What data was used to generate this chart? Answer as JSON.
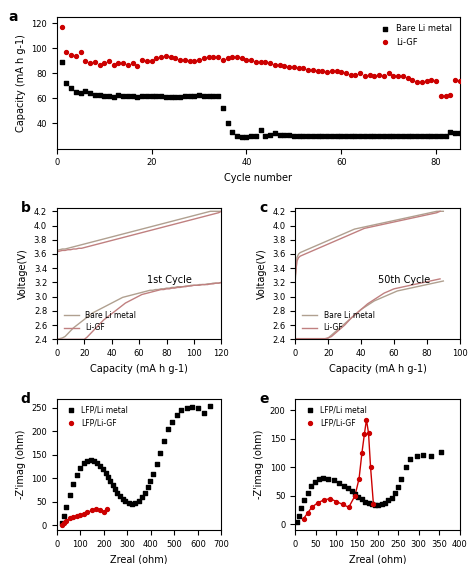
{
  "panel_a": {
    "title": "a",
    "xlabel": "Cycle number",
    "ylabel": "Capacity (mA h g-1)",
    "xlim": [
      0,
      85
    ],
    "ylim": [
      20,
      125
    ],
    "yticks": [
      40,
      60,
      80,
      100,
      120
    ],
    "xticks": [
      0,
      20,
      40,
      60,
      80
    ],
    "bare_li_x": [
      1,
      2,
      3,
      4,
      5,
      6,
      7,
      8,
      9,
      10,
      11,
      12,
      13,
      14,
      15,
      16,
      17,
      18,
      19,
      20,
      21,
      22,
      23,
      24,
      25,
      26,
      27,
      28,
      29,
      30,
      31,
      32,
      33,
      34,
      35,
      36,
      37,
      38,
      39,
      40,
      41,
      42,
      43,
      44,
      45,
      46,
      47,
      48,
      49,
      50,
      51,
      52,
      53,
      54,
      55,
      56,
      57,
      58,
      59,
      60,
      61,
      62,
      63,
      64,
      65,
      66,
      67,
      68,
      69,
      70,
      71,
      72,
      73,
      74,
      75,
      76,
      77,
      78,
      79,
      80,
      81,
      82,
      83,
      84,
      85
    ],
    "bare_li_y": [
      89,
      72,
      68,
      65,
      64,
      66,
      64,
      63,
      63,
      62,
      62,
      61,
      63,
      62,
      62,
      62,
      61,
      62,
      62,
      62,
      62,
      62,
      61,
      61,
      61,
      61,
      62,
      62,
      62,
      63,
      62,
      62,
      62,
      62,
      52,
      40,
      33,
      30,
      29,
      29,
      30,
      30,
      35,
      30,
      31,
      32,
      31,
      31,
      31,
      30,
      30,
      30,
      30,
      30,
      30,
      30,
      30,
      30,
      30,
      30,
      30,
      30,
      30,
      30,
      30,
      30,
      30,
      30,
      30,
      30,
      30,
      30,
      30,
      30,
      30,
      30,
      30,
      30,
      30,
      30,
      30,
      30,
      33,
      32,
      32
    ],
    "li_gf_x": [
      1,
      2,
      3,
      4,
      5,
      6,
      7,
      8,
      9,
      10,
      11,
      12,
      13,
      14,
      15,
      16,
      17,
      18,
      19,
      20,
      21,
      22,
      23,
      24,
      25,
      26,
      27,
      28,
      29,
      30,
      31,
      32,
      33,
      34,
      35,
      36,
      37,
      38,
      39,
      40,
      41,
      42,
      43,
      44,
      45,
      46,
      47,
      48,
      49,
      50,
      51,
      52,
      53,
      54,
      55,
      56,
      57,
      58,
      59,
      60,
      61,
      62,
      63,
      64,
      65,
      66,
      67,
      68,
      69,
      70,
      71,
      72,
      73,
      74,
      75,
      76,
      77,
      78,
      79,
      80,
      81,
      82,
      83,
      84,
      85
    ],
    "li_gf_y": [
      117,
      97,
      95,
      94,
      97,
      90,
      88,
      89,
      87,
      88,
      90,
      87,
      88,
      88,
      87,
      88,
      86,
      91,
      90,
      90,
      92,
      93,
      94,
      93,
      92,
      91,
      91,
      90,
      90,
      91,
      92,
      93,
      93,
      93,
      91,
      92,
      93,
      93,
      92,
      91,
      91,
      89,
      89,
      89,
      88,
      87,
      87,
      86,
      85,
      85,
      84,
      84,
      83,
      83,
      82,
      82,
      81,
      82,
      82,
      81,
      80,
      79,
      79,
      80,
      78,
      79,
      78,
      79,
      78,
      80,
      78,
      78,
      78,
      76,
      75,
      73,
      73,
      74,
      75,
      74,
      62,
      62,
      63,
      75,
      74
    ],
    "bare_li_color": "#000000",
    "li_gf_color": "#cc0000",
    "bare_li_label": "Bare Li metal",
    "li_gf_label": "Li-GF"
  },
  "panel_b": {
    "title": "b",
    "xlabel": "Capacity (mA h g-1)",
    "ylabel": "Voltage(V)",
    "xlim": [
      0,
      120
    ],
    "ylim": [
      2.4,
      4.25
    ],
    "xticks": [
      0,
      20,
      40,
      60,
      80,
      100,
      120
    ],
    "yticks": [
      2.4,
      2.6,
      2.8,
      3.0,
      3.2,
      3.4,
      3.6,
      3.8,
      4.0,
      4.2
    ],
    "annotation": "1st Cycle",
    "bare_li_charge_x": [
      0,
      2,
      4,
      6,
      8,
      10,
      12,
      14,
      16,
      18,
      20,
      22,
      24,
      26,
      28,
      30,
      32,
      34,
      36,
      38,
      40,
      42,
      44,
      46,
      48,
      50,
      52,
      54,
      56,
      58,
      60,
      62,
      64,
      66,
      68,
      70,
      72,
      74,
      76,
      78,
      80,
      82,
      84,
      86,
      88,
      90,
      92,
      94,
      96,
      98,
      100,
      102,
      104,
      106,
      108,
      110,
      112,
      114,
      116,
      118,
      120
    ],
    "bare_li_charge_y": [
      3.65,
      3.66,
      3.67,
      3.67,
      3.68,
      3.69,
      3.7,
      3.71,
      3.72,
      3.73,
      3.74,
      3.75,
      3.76,
      3.77,
      3.78,
      3.79,
      3.8,
      3.81,
      3.82,
      3.83,
      3.84,
      3.85,
      3.86,
      3.87,
      3.88,
      3.89,
      3.9,
      3.91,
      3.92,
      3.93,
      3.94,
      3.95,
      3.96,
      3.97,
      3.98,
      3.99,
      4.0,
      4.01,
      4.02,
      4.03,
      4.04,
      4.05,
      4.06,
      4.07,
      4.08,
      4.09,
      4.1,
      4.11,
      4.12,
      4.13,
      4.14,
      4.15,
      4.16,
      4.17,
      4.18,
      4.19,
      4.2,
      4.2,
      4.2,
      4.2,
      4.2
    ],
    "bare_li_discharge_x": [
      120,
      118,
      116,
      114,
      112,
      110,
      108,
      106,
      104,
      102,
      100,
      98,
      96,
      94,
      92,
      90,
      88,
      86,
      84,
      82,
      80,
      78,
      76,
      74,
      72,
      70,
      68,
      66,
      64,
      62,
      60,
      58,
      56,
      54,
      52,
      50,
      48,
      46,
      44,
      42,
      40,
      38,
      36,
      34,
      32,
      30,
      28,
      26,
      24,
      22,
      20,
      18,
      16,
      14,
      12,
      10,
      8,
      6,
      4,
      2,
      0
    ],
    "bare_li_discharge_y": [
      3.2,
      3.19,
      3.19,
      3.19,
      3.18,
      3.18,
      3.17,
      3.17,
      3.17,
      3.16,
      3.16,
      3.16,
      3.15,
      3.15,
      3.14,
      3.14,
      3.14,
      3.13,
      3.13,
      3.12,
      3.12,
      3.11,
      3.11,
      3.1,
      3.1,
      3.09,
      3.09,
      3.08,
      3.07,
      3.06,
      3.05,
      3.04,
      3.03,
      3.02,
      3.01,
      3.0,
      2.99,
      2.97,
      2.95,
      2.93,
      2.91,
      2.89,
      2.87,
      2.85,
      2.83,
      2.81,
      2.79,
      2.77,
      2.74,
      2.71,
      2.68,
      2.65,
      2.62,
      2.59,
      2.56,
      2.52,
      2.48,
      2.44,
      2.42,
      2.41,
      2.4
    ],
    "li_gf_charge_x": [
      0,
      2,
      4,
      6,
      8,
      10,
      12,
      14,
      16,
      18,
      20,
      22,
      24,
      26,
      28,
      30,
      32,
      34,
      36,
      38,
      40,
      42,
      44,
      46,
      48,
      50,
      52,
      54,
      56,
      58,
      60,
      62,
      64,
      66,
      68,
      70,
      72,
      74,
      76,
      78,
      80,
      82,
      84,
      86,
      88,
      90,
      92,
      94,
      96,
      98,
      100,
      102,
      104,
      106,
      108,
      110,
      112,
      114,
      116,
      118,
      120
    ],
    "li_gf_charge_y": [
      3.63,
      3.64,
      3.65,
      3.65,
      3.66,
      3.66,
      3.67,
      3.67,
      3.68,
      3.68,
      3.69,
      3.7,
      3.71,
      3.72,
      3.73,
      3.74,
      3.75,
      3.76,
      3.77,
      3.78,
      3.79,
      3.8,
      3.81,
      3.82,
      3.83,
      3.84,
      3.85,
      3.86,
      3.87,
      3.88,
      3.89,
      3.9,
      3.91,
      3.92,
      3.93,
      3.94,
      3.95,
      3.96,
      3.97,
      3.98,
      3.99,
      4.0,
      4.01,
      4.02,
      4.03,
      4.04,
      4.05,
      4.06,
      4.07,
      4.08,
      4.09,
      4.1,
      4.11,
      4.12,
      4.13,
      4.14,
      4.15,
      4.16,
      4.17,
      4.18,
      4.2
    ],
    "li_gf_discharge_x": [
      120,
      118,
      116,
      114,
      112,
      110,
      108,
      106,
      104,
      102,
      100,
      98,
      96,
      94,
      92,
      90,
      88,
      86,
      84,
      82,
      80,
      78,
      76,
      74,
      72,
      70,
      68,
      66,
      64,
      62,
      60,
      58,
      56,
      54,
      52,
      50,
      48,
      46,
      44,
      42,
      40,
      38,
      36,
      34,
      32,
      30,
      28,
      26,
      24,
      22,
      20,
      18,
      16,
      14,
      12,
      10,
      8,
      6,
      4,
      2,
      0
    ],
    "li_gf_discharge_y": [
      3.2,
      3.19,
      3.19,
      3.18,
      3.18,
      3.17,
      3.17,
      3.17,
      3.16,
      3.16,
      3.16,
      3.15,
      3.15,
      3.14,
      3.14,
      3.13,
      3.13,
      3.12,
      3.12,
      3.11,
      3.11,
      3.1,
      3.1,
      3.09,
      3.08,
      3.07,
      3.06,
      3.05,
      3.04,
      3.03,
      3.01,
      2.99,
      2.97,
      2.95,
      2.93,
      2.91,
      2.88,
      2.85,
      2.82,
      2.79,
      2.76,
      2.73,
      2.7,
      2.67,
      2.63,
      2.59,
      2.55,
      2.51,
      2.47,
      2.43,
      2.4,
      2.4,
      2.4,
      2.4,
      2.4,
      2.4,
      2.4,
      2.4,
      2.4,
      2.4,
      2.4
    ],
    "bare_li_color": "#b0a090",
    "li_gf_color": "#c08080",
    "bare_li_label": "Bare Li metal",
    "li_gf_label": "Li-GF"
  },
  "panel_c": {
    "title": "c",
    "xlabel": "Capacity (mA h g-1)",
    "ylabel": "Voltage(V)",
    "xlim": [
      0,
      100
    ],
    "ylim": [
      2.4,
      4.25
    ],
    "xticks": [
      0,
      20,
      40,
      60,
      80,
      100
    ],
    "yticks": [
      2.4,
      2.6,
      2.8,
      3.0,
      3.2,
      3.4,
      3.6,
      3.8,
      4.0,
      4.2
    ],
    "annotation": "50th Cycle",
    "bare_li_charge_x": [
      0,
      1,
      2,
      3,
      4,
      5,
      6,
      7,
      8,
      9,
      10,
      12,
      14,
      16,
      18,
      20,
      22,
      24,
      26,
      28,
      30,
      32,
      34,
      36,
      38,
      40,
      42,
      44,
      46,
      48,
      50,
      52,
      54,
      56,
      58,
      60,
      62,
      64,
      66,
      68,
      70,
      72,
      74,
      76,
      78,
      80,
      82,
      84,
      86,
      88,
      90
    ],
    "bare_li_charge_y": [
      3.25,
      3.55,
      3.6,
      3.62,
      3.63,
      3.64,
      3.65,
      3.66,
      3.67,
      3.68,
      3.69,
      3.71,
      3.73,
      3.75,
      3.77,
      3.79,
      3.81,
      3.83,
      3.85,
      3.87,
      3.89,
      3.91,
      3.93,
      3.95,
      3.96,
      3.97,
      3.98,
      3.99,
      4.0,
      4.01,
      4.02,
      4.03,
      4.04,
      4.05,
      4.06,
      4.07,
      4.08,
      4.09,
      4.1,
      4.11,
      4.12,
      4.13,
      4.14,
      4.15,
      4.16,
      4.17,
      4.18,
      4.19,
      4.2,
      4.2,
      4.2
    ],
    "bare_li_discharge_x": [
      90,
      88,
      86,
      84,
      82,
      80,
      78,
      76,
      74,
      72,
      70,
      68,
      66,
      64,
      62,
      60,
      58,
      56,
      54,
      52,
      50,
      48,
      46,
      44,
      42,
      40,
      38,
      36,
      34,
      32,
      30,
      28,
      26,
      24,
      22,
      20,
      18,
      16,
      14,
      12,
      10,
      8,
      6,
      4,
      2,
      0
    ],
    "bare_li_discharge_y": [
      3.22,
      3.21,
      3.2,
      3.19,
      3.18,
      3.17,
      3.16,
      3.15,
      3.14,
      3.13,
      3.12,
      3.11,
      3.1,
      3.09,
      3.08,
      3.06,
      3.04,
      3.02,
      3.0,
      2.98,
      2.96,
      2.94,
      2.91,
      2.88,
      2.85,
      2.82,
      2.78,
      2.74,
      2.7,
      2.66,
      2.62,
      2.58,
      2.54,
      2.5,
      2.46,
      2.42,
      2.4,
      2.4,
      2.4,
      2.4,
      2.4,
      2.4,
      2.4,
      2.4,
      2.4,
      2.4
    ],
    "li_gf_charge_x": [
      0,
      1,
      2,
      3,
      4,
      5,
      6,
      7,
      8,
      9,
      10,
      12,
      14,
      16,
      18,
      20,
      22,
      24,
      26,
      28,
      30,
      32,
      34,
      36,
      38,
      40,
      42,
      44,
      46,
      48,
      50,
      52,
      54,
      56,
      58,
      60,
      62,
      64,
      66,
      68,
      70,
      72,
      74,
      76,
      78,
      80,
      82,
      84,
      86,
      88
    ],
    "li_gf_charge_y": [
      3.3,
      3.5,
      3.55,
      3.57,
      3.58,
      3.59,
      3.6,
      3.61,
      3.62,
      3.63,
      3.64,
      3.66,
      3.68,
      3.7,
      3.72,
      3.74,
      3.76,
      3.78,
      3.8,
      3.82,
      3.84,
      3.86,
      3.88,
      3.9,
      3.92,
      3.94,
      3.96,
      3.97,
      3.98,
      3.99,
      4.0,
      4.01,
      4.02,
      4.03,
      4.04,
      4.05,
      4.06,
      4.07,
      4.08,
      4.09,
      4.1,
      4.11,
      4.12,
      4.13,
      4.14,
      4.15,
      4.16,
      4.17,
      4.18,
      4.2
    ],
    "li_gf_discharge_x": [
      88,
      86,
      84,
      82,
      80,
      78,
      76,
      74,
      72,
      70,
      68,
      66,
      64,
      62,
      60,
      58,
      56,
      54,
      52,
      50,
      48,
      46,
      44,
      42,
      40,
      38,
      36,
      34,
      32,
      30,
      28,
      26,
      24,
      22,
      20,
      18,
      16,
      14,
      12,
      10,
      8,
      6,
      4,
      2,
      0
    ],
    "li_gf_discharge_y": [
      3.25,
      3.24,
      3.23,
      3.22,
      3.21,
      3.2,
      3.19,
      3.18,
      3.17,
      3.16,
      3.15,
      3.14,
      3.13,
      3.12,
      3.11,
      3.09,
      3.07,
      3.05,
      3.02,
      2.99,
      2.96,
      2.93,
      2.9,
      2.86,
      2.82,
      2.78,
      2.74,
      2.7,
      2.65,
      2.6,
      2.56,
      2.52,
      2.48,
      2.44,
      2.42,
      2.41,
      2.41,
      2.41,
      2.41,
      2.41,
      2.41,
      2.41,
      2.41,
      2.41,
      2.41
    ],
    "bare_li_color": "#b0a090",
    "li_gf_color": "#c08080",
    "bare_li_label": "Bare Li metal",
    "li_gf_label": "Li-GF"
  },
  "panel_d": {
    "title": "d",
    "xlabel": "Zreal (ohm)",
    "ylabel": "-Z'imag (ohm)",
    "xlim": [
      0,
      700
    ],
    "ylim": [
      -10,
      270
    ],
    "xticks": [
      0,
      100,
      200,
      300,
      400,
      500,
      600,
      700
    ],
    "yticks": [
      0,
      50,
      100,
      150,
      200,
      250
    ],
    "black_x": [
      20,
      30,
      40,
      55,
      70,
      85,
      100,
      115,
      130,
      145,
      158,
      170,
      182,
      195,
      207,
      218,
      228,
      238,
      247,
      257,
      268,
      280,
      292,
      305,
      318,
      332,
      348,
      363,
      376,
      387,
      398,
      410,
      425,
      440,
      455,
      472,
      490,
      510,
      530,
      552,
      575,
      600,
      625,
      652
    ],
    "black_y": [
      5,
      20,
      40,
      65,
      88,
      108,
      122,
      132,
      138,
      140,
      138,
      133,
      127,
      120,
      112,
      103,
      95,
      87,
      78,
      70,
      63,
      57,
      52,
      48,
      46,
      47,
      52,
      60,
      70,
      82,
      95,
      110,
      130,
      155,
      180,
      205,
      220,
      235,
      245,
      250,
      252,
      250,
      240,
      255
    ],
    "red_x": [
      20,
      30,
      40,
      55,
      70,
      85,
      100,
      115,
      130,
      150,
      168,
      185,
      200,
      215
    ],
    "red_y": [
      0,
      5,
      10,
      15,
      18,
      20,
      22,
      25,
      28,
      32,
      35,
      32,
      28,
      36
    ],
    "black_color": "#000000",
    "red_color": "#cc0000",
    "black_label": "LFP/Li metal",
    "red_label": "LFP/Li-GF"
  },
  "panel_e": {
    "title": "e",
    "xlabel": "Zreal (ohm)",
    "ylabel": "-Z'imag (ohm)",
    "xlim": [
      0,
      400
    ],
    "ylim": [
      -10,
      220
    ],
    "xticks": [
      0,
      50,
      100,
      150,
      200,
      250,
      300,
      350,
      400
    ],
    "yticks": [
      0,
      50,
      100,
      150,
      200
    ],
    "black_x": [
      5,
      10,
      15,
      22,
      30,
      38,
      47,
      57,
      68,
      80,
      93,
      106,
      118,
      128,
      137,
      145,
      153,
      162,
      170,
      178,
      186,
      194,
      202,
      210,
      218,
      226,
      234,
      242,
      250,
      258,
      268,
      280,
      295,
      310,
      330,
      355
    ],
    "black_y": [
      5,
      15,
      28,
      42,
      55,
      67,
      75,
      80,
      82,
      80,
      77,
      73,
      68,
      63,
      58,
      53,
      48,
      44,
      40,
      37,
      35,
      34,
      34,
      36,
      38,
      42,
      47,
      55,
      65,
      80,
      100,
      115,
      120,
      122,
      120,
      127
    ],
    "red_x": [
      20,
      30,
      40,
      55,
      70,
      85,
      100,
      115,
      130,
      145,
      155,
      162,
      168,
      173,
      178,
      183,
      190
    ],
    "red_y": [
      10,
      20,
      30,
      38,
      43,
      45,
      40,
      35,
      30,
      50,
      80,
      125,
      158,
      183,
      160,
      100,
      35
    ],
    "black_color": "#000000",
    "red_color": "#cc0000",
    "black_label": "LFP/Li metal",
    "red_label": "LFP/Li-GF"
  }
}
